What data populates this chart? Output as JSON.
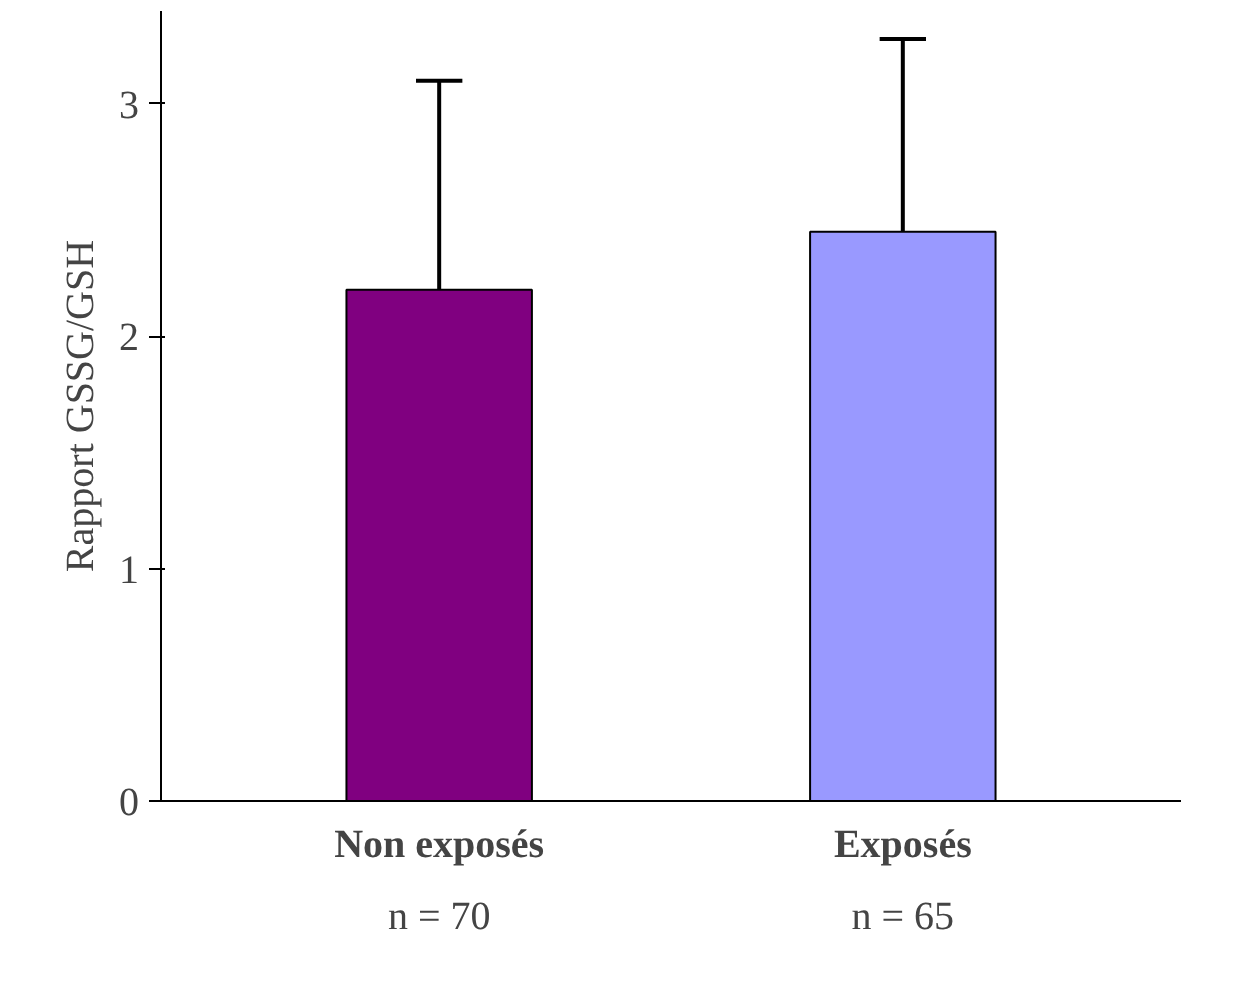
{
  "chart_data": {
    "type": "bar",
    "ylabel": "Rapport GSSG/GSH",
    "categories": [
      "Non exposés",
      "Exposés"
    ],
    "values": [
      2.2,
      2.45
    ],
    "colors": [
      "#800080",
      "#9999ff"
    ],
    "errors": [
      [
        2.2,
        3.1
      ],
      [
        2.45,
        3.28
      ]
    ],
    "ylim": [
      0,
      3.4
    ],
    "yticks": [
      0,
      1,
      2,
      3
    ],
    "annotations": [
      "n = 70",
      "n = 65"
    ],
    "grid": false
  }
}
